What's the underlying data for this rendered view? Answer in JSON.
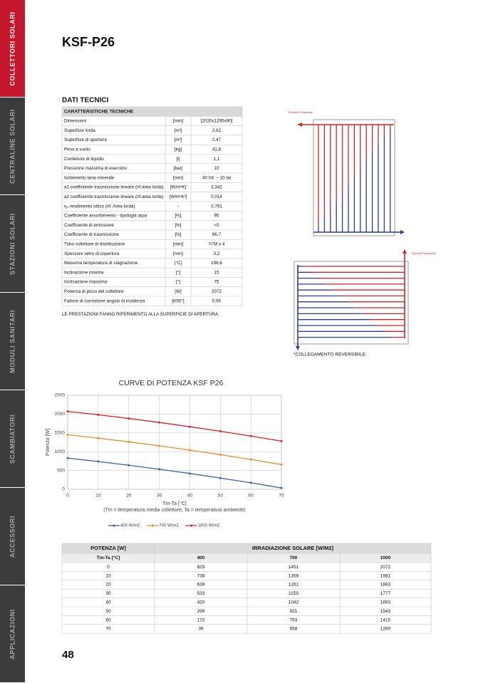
{
  "sidebar": {
    "tabs": [
      "COLLETTORI SOLARI",
      "CENTRALINE SOLARI",
      "STAZIONI SOLARI",
      "MODULI SANITARI",
      "SCAMBIATORI",
      "ACCESSORI",
      "APPLICAZIONI"
    ]
  },
  "header": {
    "title": "KSF-P26"
  },
  "specs": {
    "title": "DATI TECNICI",
    "header": "CARATTERISTICHE TECNICHE",
    "rows": [
      [
        "Dimensioni",
        "[mm]",
        "[2020x1295x90]"
      ],
      [
        "Superficie lorda",
        "[m²]",
        "2,62"
      ],
      [
        "Superficie di apertura",
        "[m²]",
        "2,47"
      ],
      [
        "Peso a vuoto",
        "[kg]",
        "41,8"
      ],
      [
        "Contenuto di liquido",
        "[l]",
        "1,1"
      ],
      [
        "Pressione massima di esercizio",
        "[bar]",
        "10"
      ],
      [
        "Isolamento lana minerale",
        "[mm]",
        "40 Inf. – 10 lat"
      ],
      [
        "a1 coefficiente trasmissione lineare (rif.area lorda)",
        "[W/m²K]",
        "3,342"
      ],
      [
        "a2 coefficiente trasmissione lineare (rif.area lorda)",
        "[W/m²K²]",
        "0,014"
      ],
      [
        "η₀ rendimento ottico (rif. Area lorda)",
        "-",
        "0,791"
      ],
      [
        "Coefficiente assorbimento - tipologia arpa",
        "[%]",
        "95"
      ],
      [
        "Coefficiente di emissione",
        "[%]",
        "<5"
      ],
      [
        "Coefficiente di trasmissione",
        "[%]",
        "96,7"
      ],
      [
        "Tubo collettore di distribuzione",
        "[mm]",
        "¾\"M x 4"
      ],
      [
        "Spessore vetro di copertura",
        "[mm]",
        "3,2"
      ],
      [
        "Massima temperatura di stagnazione",
        "[°C]",
        "196,6"
      ],
      [
        "Inclinazione minima",
        "[°]",
        "15"
      ],
      [
        "Inclinazione massima",
        "[°]",
        "75"
      ],
      [
        "Potenza di picco del collettore",
        "[W]",
        "2072"
      ],
      [
        "Fattore di correzione angolo di incidenza",
        "[K50°]",
        "0,95"
      ]
    ],
    "note": "LE PRESTAZIONI FANNO RIFERIMENTO ALLA SUPERFICIE DI APERTURA"
  },
  "diagrams": {
    "probe_labels": [
      "Pozzetto Portasonda",
      "Pozzetto Portasonda"
    ],
    "note": "*COLLEGAMENTO REVERSIBILE"
  },
  "chart_data": {
    "type": "line",
    "title": "CURVE DI POTENZA KSF P26",
    "x_label": "Tm-Ta [°C]",
    "x_note": "(Tm = temperatura media collettore; Ta = temperatura ambiente)",
    "y_label": "Potenza [W]",
    "x": [
      0,
      10,
      20,
      30,
      40,
      50,
      60,
      70
    ],
    "series": [
      {
        "name": "400 W/m2",
        "color": "#3d5fa8",
        "values": [
          829,
          738,
          639,
          533,
          420,
          299,
          172,
          36
        ]
      },
      {
        "name": "700 W/m2",
        "color": "#e88a2e",
        "values": [
          1451,
          1359,
          1261,
          1155,
          1042,
          921,
          793,
          658
        ]
      },
      {
        "name": "1000 W/m2",
        "color": "#d2232a",
        "values": [
          2072,
          1981,
          1883,
          1777,
          1663,
          1543,
          1415,
          1280
        ]
      }
    ],
    "xlim": [
      0,
      70
    ],
    "xticks": [
      0,
      10,
      20,
      30,
      40,
      50,
      60,
      70
    ],
    "ylim": [
      0,
      2500
    ],
    "yticks": [
      0,
      500,
      1000,
      1500,
      2000,
      2500
    ],
    "grid": true,
    "legend": "bottom"
  },
  "power_table": {
    "header": [
      "POTENZA [W]",
      "IRRADIAZIONE SOLARE [W/M2]"
    ],
    "subheader": [
      "Tm-Ta [°C]",
      "400",
      "700",
      "1000"
    ]
  },
  "page_number": "48"
}
